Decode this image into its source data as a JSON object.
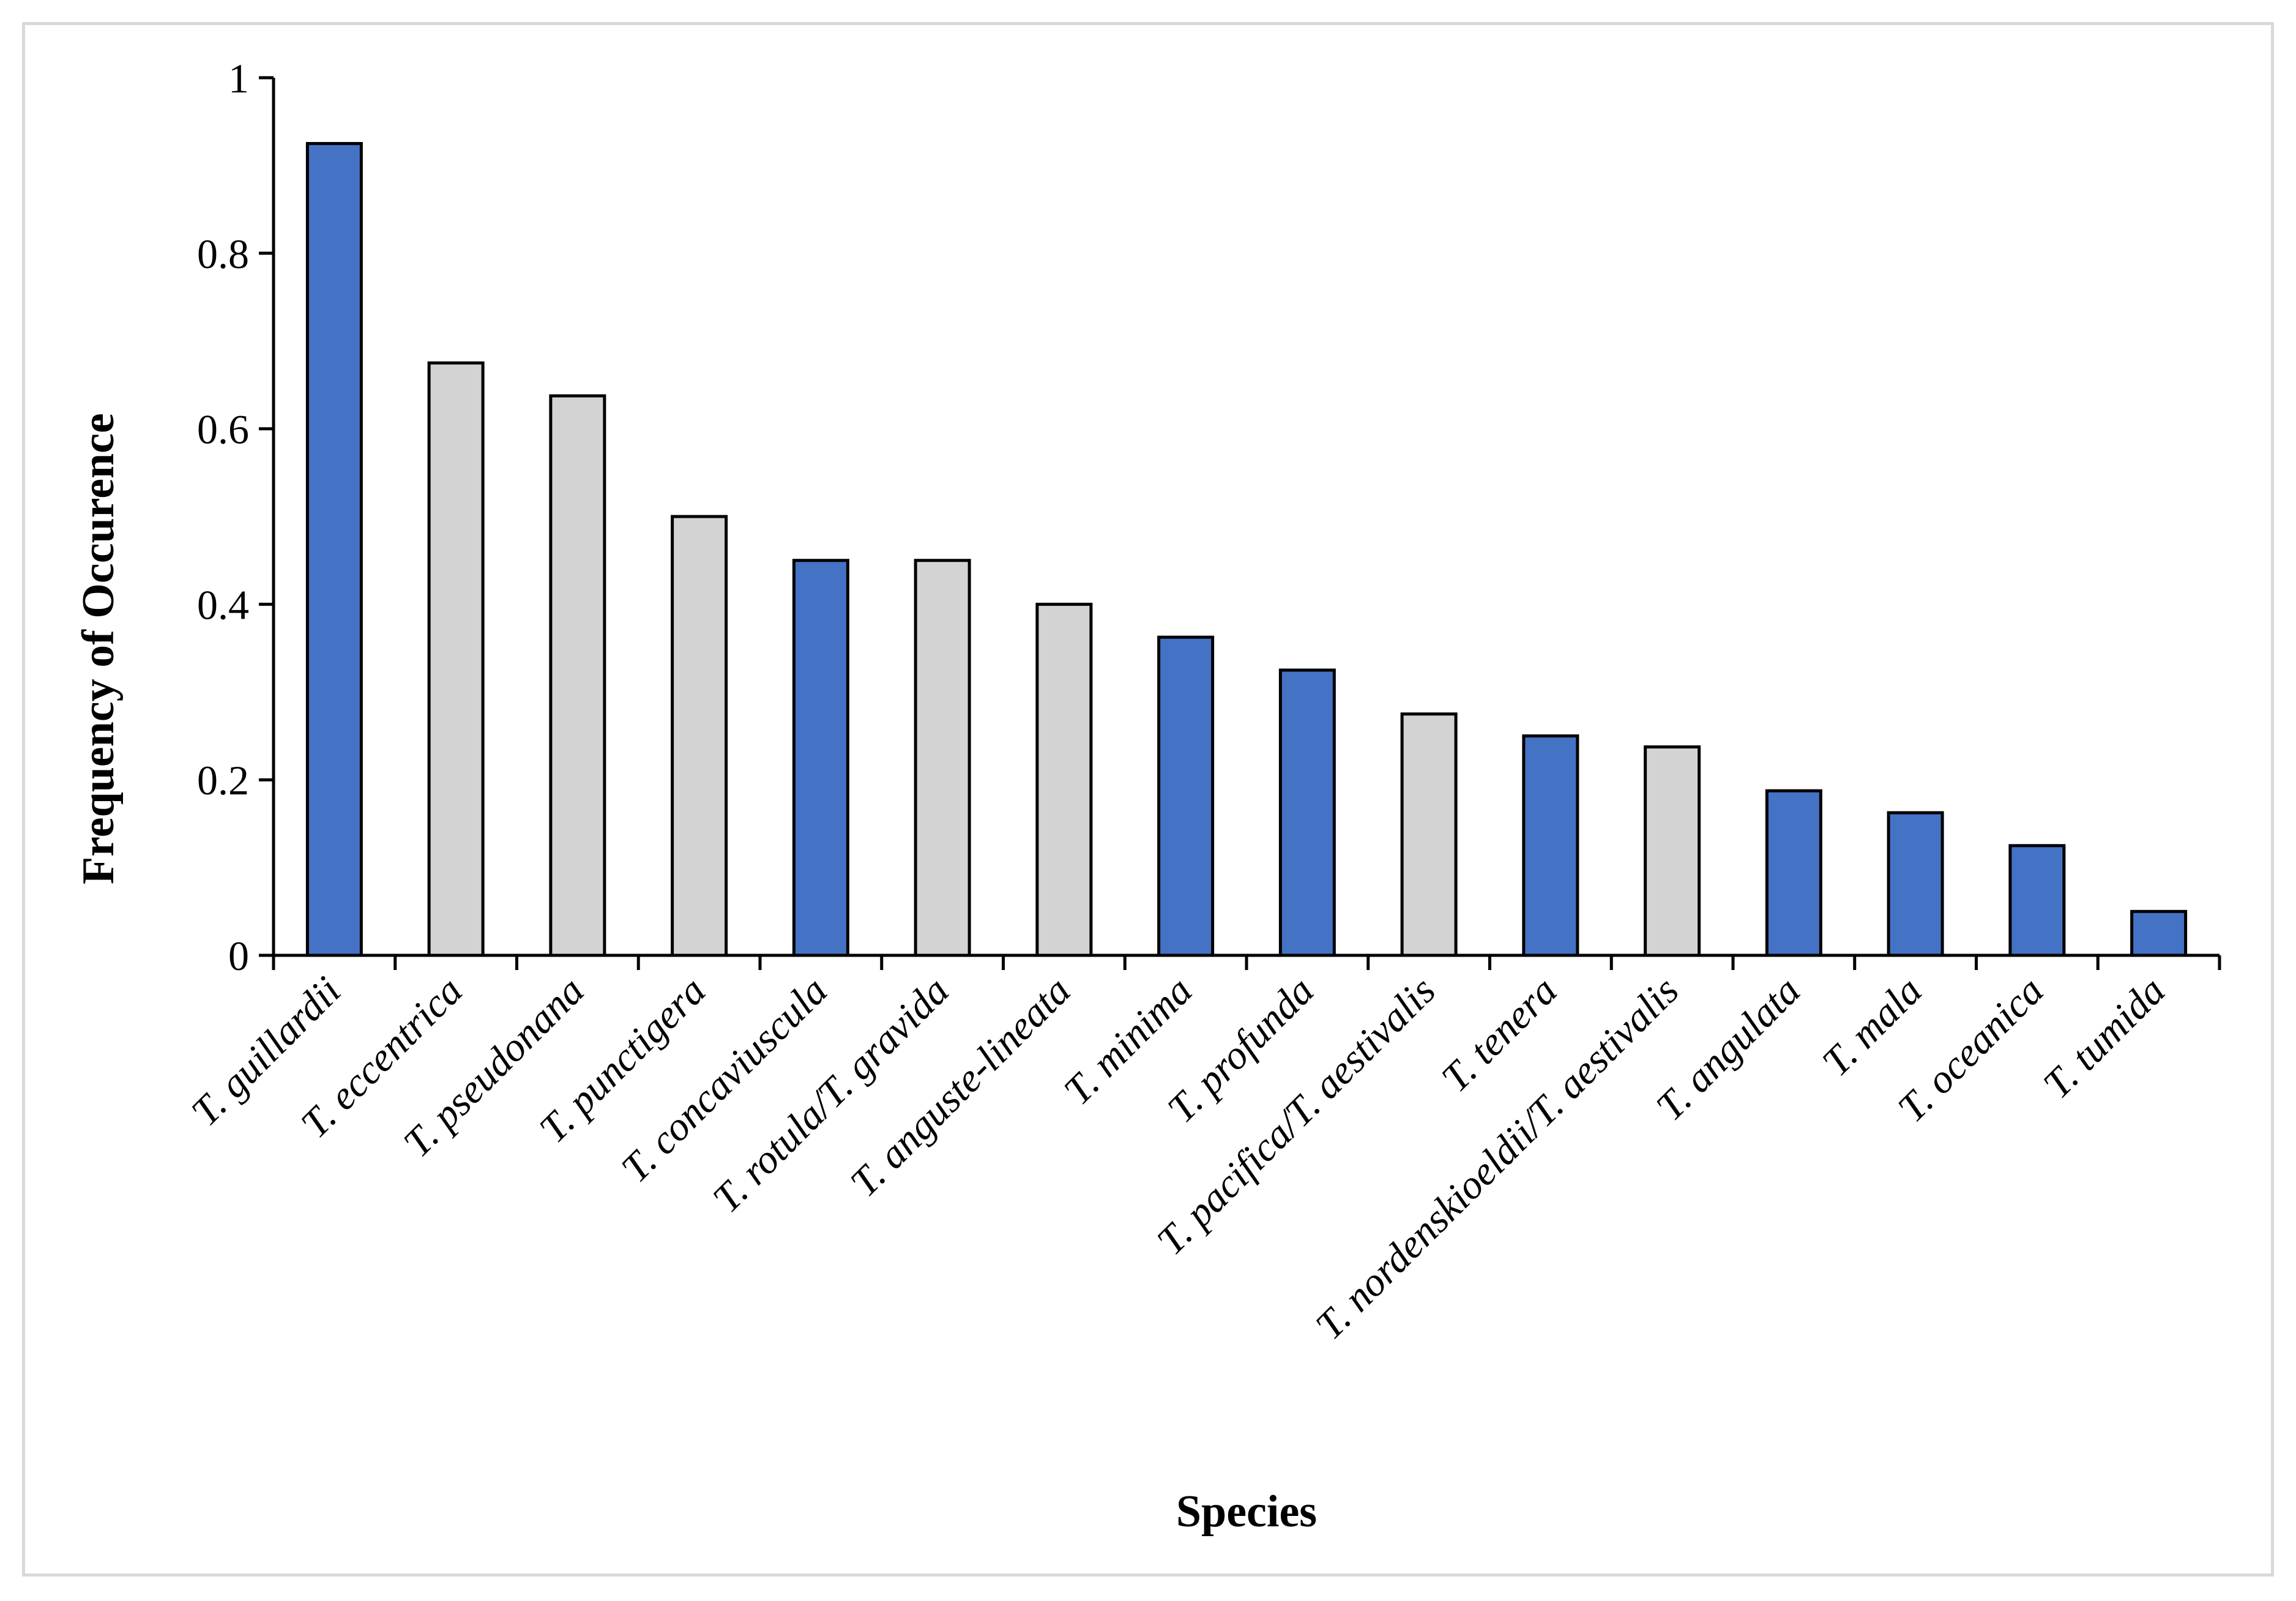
{
  "chart_data": {
    "type": "bar",
    "title": "",
    "xlabel": "Species",
    "ylabel": "Frequency of Occurence",
    "ylim": [
      0,
      1
    ],
    "yticks": [
      0,
      0.2,
      0.4,
      0.6,
      0.8,
      1
    ],
    "ytick_labels": [
      "0",
      "0.2",
      "0.4",
      "0.6",
      "0.8",
      "1"
    ],
    "grid": false,
    "legend": "none",
    "colors": {
      "blue": "#4472c4",
      "gray": "#d3d3d3",
      "outline": "#000000"
    },
    "categories": [
      "T. guillardii",
      "T. eccentrica",
      "T. pseudonana",
      "T. punctigera",
      "T. concaviuscula",
      "T. rotula/T. gravida",
      "T. anguste-lineata",
      "T. minima",
      "T. profunda",
      "T. pacifica/T. aestivalis",
      "T. tenera",
      "T. nordenskioeldii/T. aestivalis",
      "T. angulata",
      "T. mala",
      "T. oceanica",
      "T. tumida"
    ],
    "values": [
      0.925,
      0.675,
      0.6375,
      0.5,
      0.45,
      0.45,
      0.4,
      0.3625,
      0.325,
      0.275,
      0.25,
      0.2375,
      0.1875,
      0.1625,
      0.125,
      0.05
    ],
    "bar_colors": [
      "blue",
      "gray",
      "gray",
      "gray",
      "blue",
      "gray",
      "gray",
      "blue",
      "blue",
      "gray",
      "blue",
      "gray",
      "blue",
      "blue",
      "blue",
      "blue"
    ]
  }
}
